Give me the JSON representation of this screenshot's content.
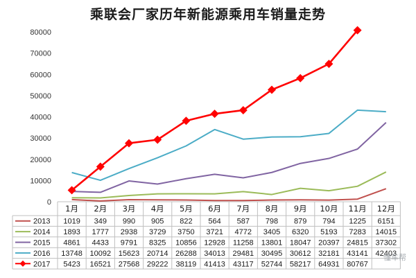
{
  "page": {
    "watermark": "懂车帮"
  },
  "chart_data": {
    "type": "line",
    "title": "乘联会厂家历年新能源乘用车销量走势",
    "categories": [
      "1月",
      "2月",
      "3月",
      "4月",
      "5月",
      "6月",
      "7月",
      "8月",
      "9月",
      "10月",
      "11月",
      "12月"
    ],
    "ylim": [
      0,
      80000
    ],
    "yticks": [
      0,
      10000,
      20000,
      30000,
      40000,
      50000,
      60000,
      70000,
      80000
    ],
    "grid": false,
    "legend": "table-below",
    "series": [
      {
        "name": "2013",
        "color": "#c0504d",
        "marker": "none",
        "values": [
          1019,
          349,
          990,
          905,
          822,
          564,
          587,
          798,
          879,
          794,
          1225,
          6151
        ]
      },
      {
        "name": "2014",
        "color": "#9bbb59",
        "marker": "none",
        "values": [
          1893,
          1777,
          2938,
          3729,
          3750,
          3721,
          4772,
          3405,
          6320,
          5193,
          7283,
          14015
        ]
      },
      {
        "name": "2015",
        "color": "#8064a2",
        "marker": "none",
        "values": [
          4861,
          4433,
          9791,
          8325,
          10856,
          12928,
          11258,
          13801,
          18047,
          20397,
          24815,
          37302
        ]
      },
      {
        "name": "2016",
        "color": "#4bacc6",
        "marker": "none",
        "values": [
          13748,
          10092,
          15623,
          20714,
          26288,
          34013,
          29481,
          30495,
          30612,
          32181,
          43141,
          42403
        ]
      },
      {
        "name": "2017",
        "color": "#ff0000",
        "marker": "diamond",
        "values": [
          5423,
          16521,
          27568,
          29222,
          38119,
          41413,
          43117,
          52744,
          58217,
          64931,
          80767,
          null
        ]
      }
    ]
  }
}
